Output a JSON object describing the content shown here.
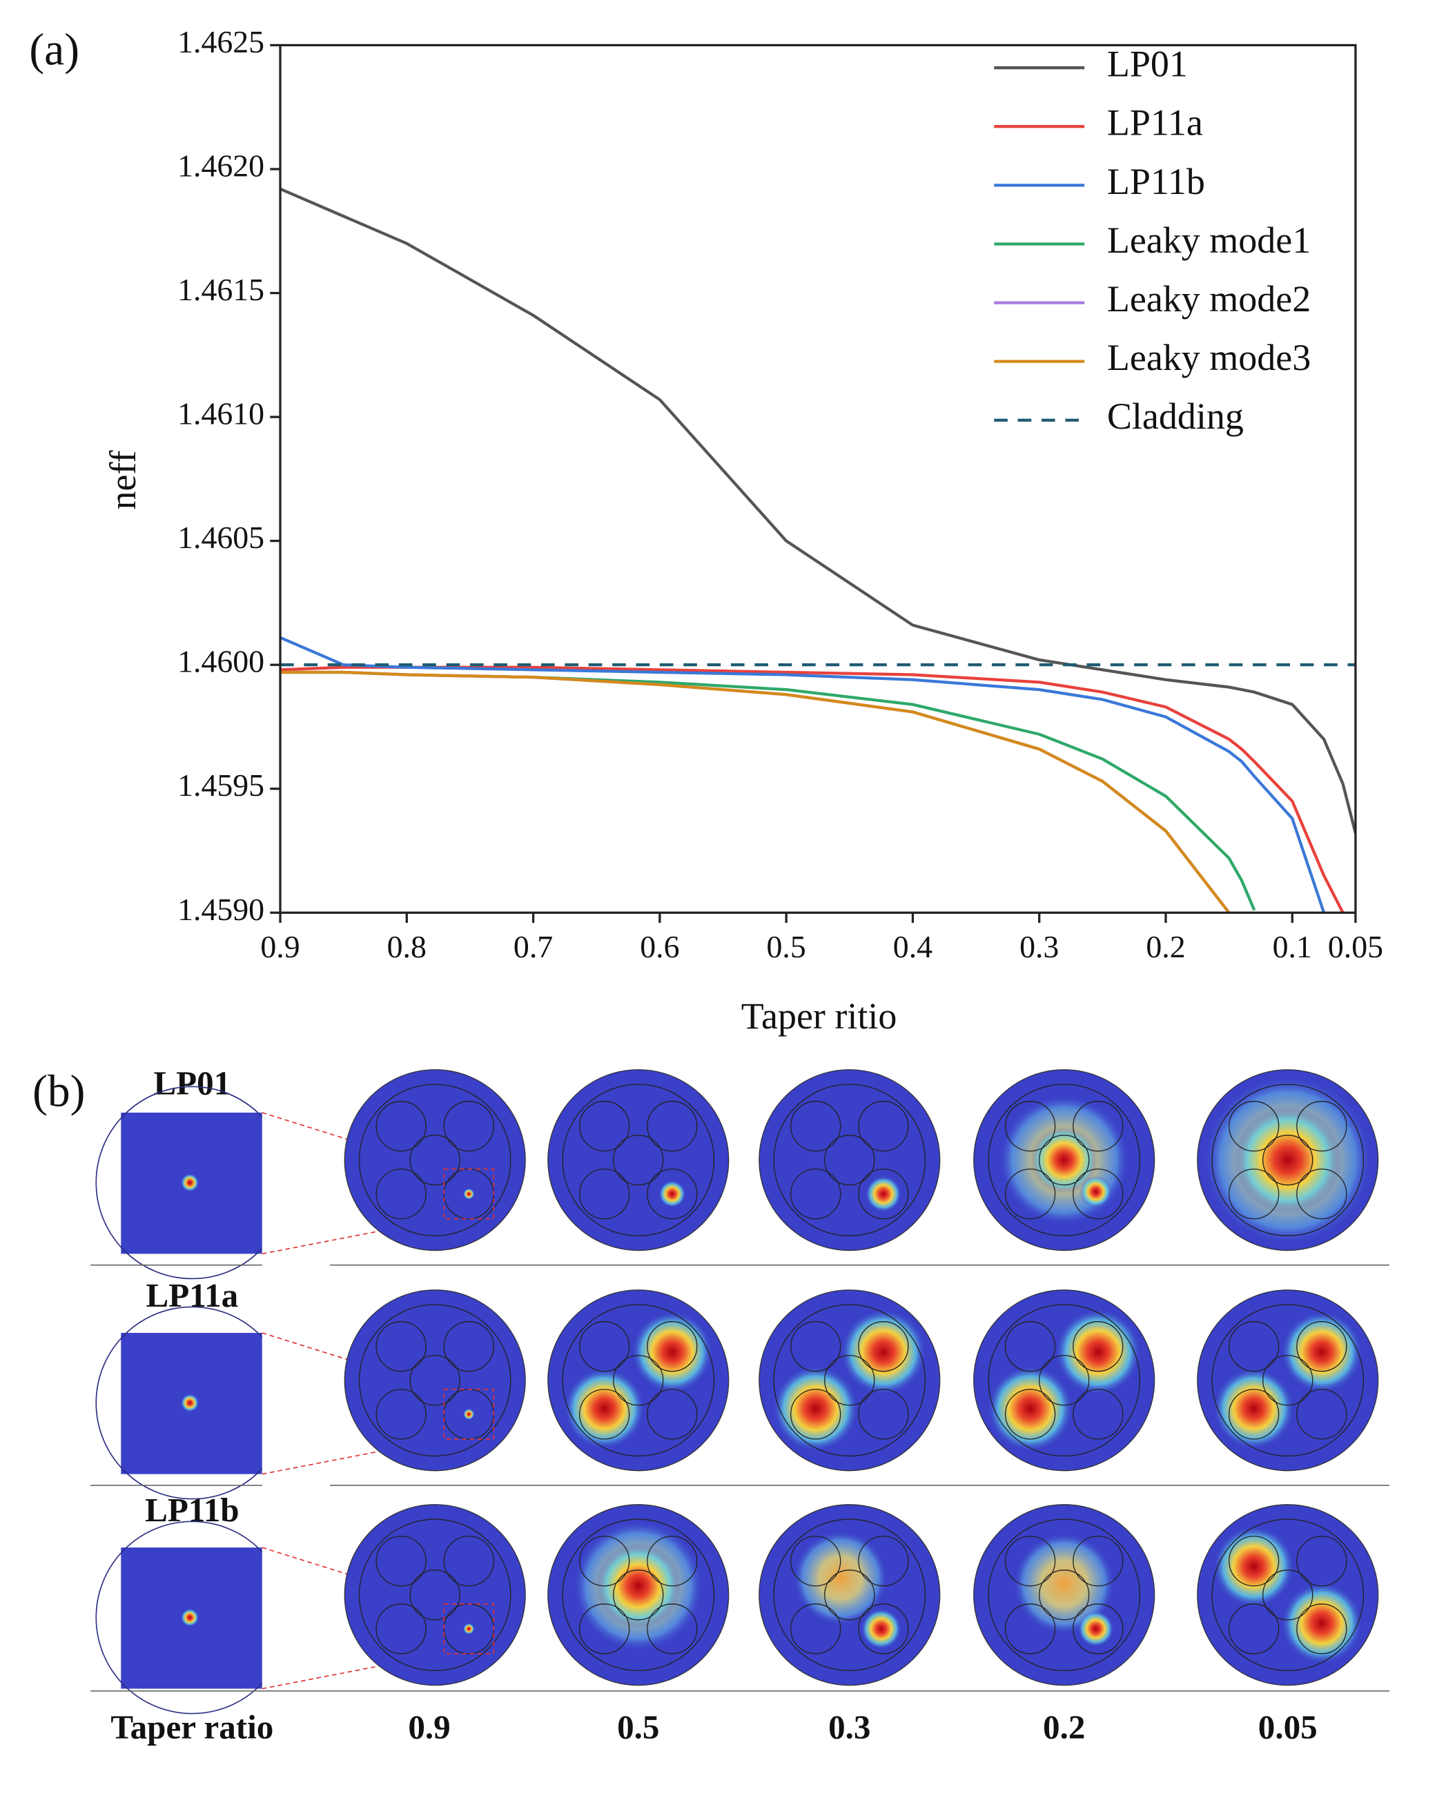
{
  "chart_data": {
    "type": "line",
    "panel_label": "(a)",
    "xlabel": "Taper ritio",
    "ylabel": "neff",
    "x": [
      0.9,
      0.85,
      0.8,
      0.7,
      0.6,
      0.5,
      0.4,
      0.3,
      0.25,
      0.2,
      0.15,
      0.14,
      0.13,
      0.1,
      0.075,
      0.06,
      0.05
    ],
    "series": [
      {
        "name": "LP01",
        "color": "#555555",
        "values": [
          1.46192,
          1.46181,
          1.4617,
          1.46141,
          1.46107,
          1.4605,
          1.46016,
          1.46002,
          1.45998,
          1.45994,
          1.45991,
          1.4599,
          1.45989,
          1.45984,
          1.4597,
          1.45952,
          1.45932
        ]
      },
      {
        "name": "LP11a",
        "color": "#e8413c",
        "values": [
          1.45998,
          1.45999,
          1.45999,
          1.45999,
          1.45998,
          1.45997,
          1.45996,
          1.45993,
          1.45989,
          1.45983,
          1.4597,
          1.45966,
          1.45961,
          1.45945,
          1.45915,
          1.459,
          null
        ]
      },
      {
        "name": "LP11b",
        "color": "#3a78d8",
        "values": [
          1.46011,
          1.46,
          1.45999,
          1.45998,
          1.45997,
          1.45996,
          1.45994,
          1.4599,
          1.45986,
          1.45979,
          1.45965,
          1.45961,
          1.45955,
          1.45938,
          1.459,
          null,
          null
        ]
      },
      {
        "name": "Leaky mode1",
        "color": "#2ea86a",
        "values": [
          1.45997,
          1.45997,
          1.45996,
          1.45995,
          1.45993,
          1.4599,
          1.45984,
          1.45972,
          1.45962,
          1.45947,
          1.45922,
          1.45913,
          1.45901,
          null,
          null,
          null,
          null
        ]
      },
      {
        "name": "Leaky mode2",
        "color": "#a77be0",
        "values": [
          1.45997,
          1.45997,
          1.45996,
          1.45995,
          1.45992,
          1.45988,
          1.45981,
          1.45966,
          1.45953,
          1.45933,
          1.459,
          null,
          null,
          null,
          null,
          null,
          null
        ]
      },
      {
        "name": "Leaky mode3",
        "color": "#d48a1a",
        "values": [
          1.45997,
          1.45997,
          1.45996,
          1.45995,
          1.45992,
          1.45988,
          1.45981,
          1.45966,
          1.45953,
          1.45933,
          1.459,
          null,
          null,
          null,
          null,
          null,
          null
        ]
      },
      {
        "name": "Cladding",
        "color": "#1f5a73",
        "dashed": true,
        "values": [
          1.46,
          1.46,
          1.46,
          1.46,
          1.46,
          1.46,
          1.46,
          1.46,
          1.46,
          1.46,
          1.46,
          1.46,
          1.46,
          1.46,
          1.46,
          1.46,
          1.46
        ]
      }
    ],
    "xlim": [
      0.9,
      0.05
    ],
    "xticks": [
      0.9,
      0.8,
      0.7,
      0.6,
      0.5,
      0.4,
      0.3,
      0.2,
      0.1,
      0.05
    ],
    "ylim": [
      1.459,
      1.4625
    ],
    "yticks": [
      {
        "value": 1.459,
        "label": "1.4590"
      },
      1.4595,
      {
        "value": 1.46,
        "label": "1.4600"
      },
      1.4605,
      {
        "value": 1.461,
        "label": "1.4610"
      },
      1.4615,
      {
        "value": 1.462,
        "label": "1.4620"
      },
      1.4625
    ],
    "legend": "upper right"
  },
  "panel_b": {
    "panel_label": "(b)",
    "rows": [
      "LP01",
      "LP11a",
      "LP11b"
    ],
    "footer_label": "Taper ratio",
    "columns": [
      0.9,
      0.5,
      0.3,
      0.2,
      0.05
    ]
  }
}
